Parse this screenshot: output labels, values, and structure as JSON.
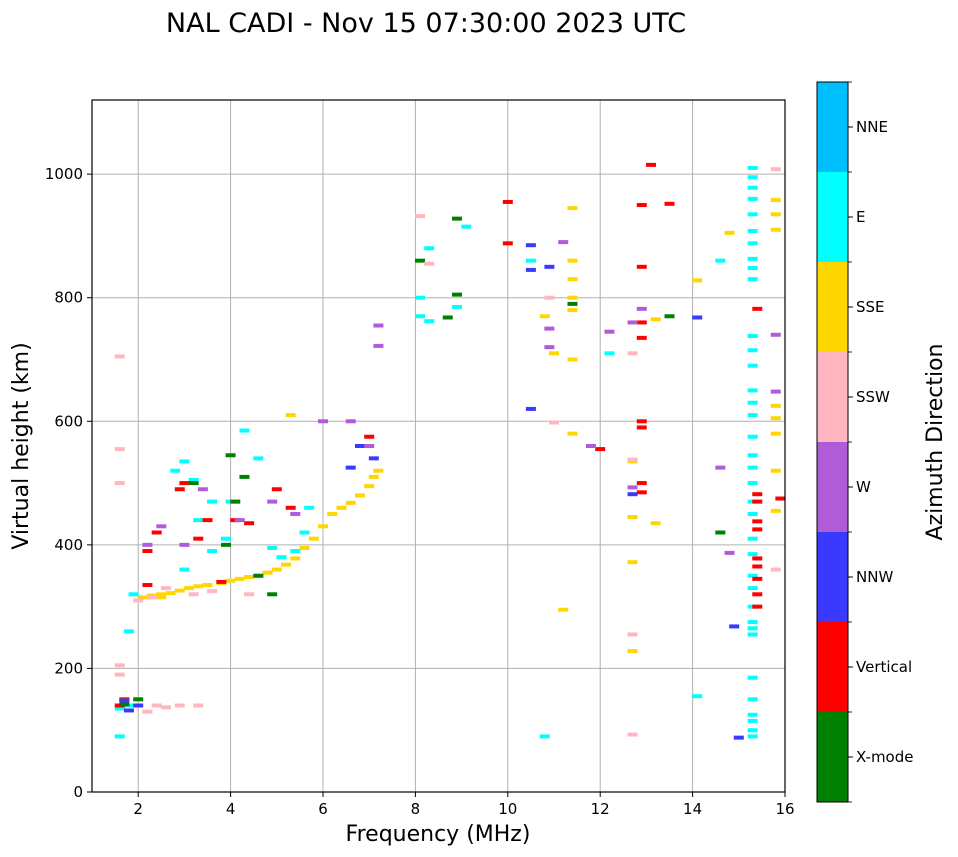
{
  "chart_data": {
    "type": "scatter",
    "title": "NAL CADI - Nov 15 07:30:00 2023 UTC",
    "xlabel": "Frequency (MHz)",
    "ylabel": "Virtual height (km)",
    "xlim": [
      1,
      16
    ],
    "ylim": [
      0,
      1120
    ],
    "xticks": [
      2,
      4,
      6,
      8,
      10,
      12,
      14,
      16
    ],
    "yticks": [
      0,
      200,
      400,
      600,
      800,
      1000
    ],
    "grid": true,
    "colorbar": {
      "title": "Azimuth Direction",
      "categories": [
        {
          "label": "X-mode",
          "color": "#008000"
        },
        {
          "label": "Vertical",
          "color": "#ff0000"
        },
        {
          "label": "NNW",
          "color": "#3a3aff"
        },
        {
          "label": "W",
          "color": "#b05bd8"
        },
        {
          "label": "SSW",
          "color": "#ffb6c1"
        },
        {
          "label": "SSE",
          "color": "#ffd700"
        },
        {
          "label": "E",
          "color": "#00ffff"
        },
        {
          "label": "NNE",
          "color": "#00bfff"
        }
      ]
    },
    "series": [
      {
        "name": "SSE",
        "points": [
          [
            2.1,
            315
          ],
          [
            2.3,
            318
          ],
          [
            2.5,
            320
          ],
          [
            2.7,
            322
          ],
          [
            2.9,
            326
          ],
          [
            3.1,
            330
          ],
          [
            3.3,
            333
          ],
          [
            3.5,
            335
          ],
          [
            3.8,
            338
          ],
          [
            4.0,
            342
          ],
          [
            4.2,
            345
          ],
          [
            4.4,
            348
          ],
          [
            4.6,
            350
          ],
          [
            4.8,
            355
          ],
          [
            5.0,
            360
          ],
          [
            5.2,
            368
          ],
          [
            5.4,
            378
          ],
          [
            5.6,
            395
          ],
          [
            5.8,
            410
          ],
          [
            6.0,
            430
          ],
          [
            6.2,
            450
          ],
          [
            6.4,
            460
          ],
          [
            6.6,
            468
          ],
          [
            6.8,
            480
          ],
          [
            7.0,
            495
          ],
          [
            7.1,
            510
          ],
          [
            7.2,
            520
          ],
          [
            11.4,
            580
          ],
          [
            11.4,
            700
          ],
          [
            11.4,
            780
          ],
          [
            11.4,
            800
          ],
          [
            11.4,
            830
          ],
          [
            11.4,
            860
          ],
          [
            11.4,
            945
          ],
          [
            11.0,
            710
          ],
          [
            10.8,
            770
          ],
          [
            12.7,
            445
          ],
          [
            12.7,
            228
          ],
          [
            12.7,
            372
          ],
          [
            12.7,
            535
          ],
          [
            13.2,
            435
          ],
          [
            13.2,
            765
          ],
          [
            14.1,
            828
          ],
          [
            14.8,
            905
          ],
          [
            15.8,
            455
          ],
          [
            15.8,
            520
          ],
          [
            15.8,
            580
          ],
          [
            15.8,
            605
          ],
          [
            15.8,
            625
          ],
          [
            15.8,
            910
          ],
          [
            15.8,
            935
          ],
          [
            15.8,
            958
          ],
          [
            11.2,
            295
          ],
          [
            5.3,
            610
          ],
          [
            2.5,
            315
          ]
        ]
      },
      {
        "name": "E",
        "points": [
          [
            2.8,
            520
          ],
          [
            3.0,
            535
          ],
          [
            3.2,
            505
          ],
          [
            3.6,
            470
          ],
          [
            3.9,
            410
          ],
          [
            4.1,
            470
          ],
          [
            4.3,
            585
          ],
          [
            4.6,
            540
          ],
          [
            4.9,
            395
          ],
          [
            5.1,
            380
          ],
          [
            5.4,
            390
          ],
          [
            5.6,
            420
          ],
          [
            5.7,
            460
          ],
          [
            3.3,
            440
          ],
          [
            3.6,
            390
          ],
          [
            1.6,
            90
          ],
          [
            1.6,
            135
          ],
          [
            1.8,
            140
          ],
          [
            1.8,
            260
          ],
          [
            1.9,
            320
          ],
          [
            8.1,
            800
          ],
          [
            8.1,
            770
          ],
          [
            8.3,
            762
          ],
          [
            8.3,
            880
          ],
          [
            8.9,
            785
          ],
          [
            9.1,
            915
          ],
          [
            10.8,
            90
          ],
          [
            10.5,
            860
          ],
          [
            12.2,
            710
          ],
          [
            14.1,
            155
          ],
          [
            14.6,
            860
          ],
          [
            15.3,
            90
          ],
          [
            15.3,
            100
          ],
          [
            15.3,
            115
          ],
          [
            15.3,
            125
          ],
          [
            15.3,
            150
          ],
          [
            15.3,
            185
          ],
          [
            15.3,
            255
          ],
          [
            15.3,
            265
          ],
          [
            15.3,
            275
          ],
          [
            15.3,
            300
          ],
          [
            15.3,
            330
          ],
          [
            15.3,
            350
          ],
          [
            15.3,
            385
          ],
          [
            15.3,
            410
          ],
          [
            15.3,
            450
          ],
          [
            15.3,
            470
          ],
          [
            15.3,
            500
          ],
          [
            15.3,
            525
          ],
          [
            15.3,
            545
          ],
          [
            15.3,
            575
          ],
          [
            15.3,
            610
          ],
          [
            15.3,
            630
          ],
          [
            15.3,
            650
          ],
          [
            15.3,
            690
          ],
          [
            15.3,
            715
          ],
          [
            15.3,
            738
          ],
          [
            15.3,
            830
          ],
          [
            15.3,
            848
          ],
          [
            15.3,
            863
          ],
          [
            15.3,
            888
          ],
          [
            15.3,
            908
          ],
          [
            15.3,
            935
          ],
          [
            15.3,
            960
          ],
          [
            15.3,
            978
          ],
          [
            15.3,
            995
          ],
          [
            15.3,
            1010
          ],
          [
            3.0,
            360
          ],
          [
            4.0,
            470
          ]
        ]
      },
      {
        "name": "Vertical",
        "points": [
          [
            1.6,
            140
          ],
          [
            1.7,
            150
          ],
          [
            2.2,
            390
          ],
          [
            2.2,
            335
          ],
          [
            2.4,
            420
          ],
          [
            2.9,
            490
          ],
          [
            3.0,
            500
          ],
          [
            3.3,
            410
          ],
          [
            3.5,
            440
          ],
          [
            3.8,
            340
          ],
          [
            4.1,
            440
          ],
          [
            4.4,
            435
          ],
          [
            5.0,
            490
          ],
          [
            5.3,
            460
          ],
          [
            7.0,
            575
          ],
          [
            10.0,
            955
          ],
          [
            10.0,
            888
          ],
          [
            12.0,
            555
          ],
          [
            12.9,
            950
          ],
          [
            12.9,
            850
          ],
          [
            12.9,
            760
          ],
          [
            12.9,
            735
          ],
          [
            12.9,
            590
          ],
          [
            12.9,
            600
          ],
          [
            12.9,
            500
          ],
          [
            12.9,
            485
          ],
          [
            13.1,
            1015
          ],
          [
            13.5,
            952
          ],
          [
            15.4,
            300
          ],
          [
            15.4,
            320
          ],
          [
            15.4,
            345
          ],
          [
            15.4,
            365
          ],
          [
            15.4,
            378
          ],
          [
            15.4,
            425
          ],
          [
            15.4,
            438
          ],
          [
            15.4,
            470
          ],
          [
            15.4,
            482
          ],
          [
            15.4,
            782
          ],
          [
            15.9,
            475
          ]
        ]
      },
      {
        "name": "X-mode",
        "points": [
          [
            1.7,
            142
          ],
          [
            2.0,
            150
          ],
          [
            4.1,
            470
          ],
          [
            4.0,
            545
          ],
          [
            4.3,
            510
          ],
          [
            4.6,
            350
          ],
          [
            4.9,
            320
          ],
          [
            3.9,
            400
          ],
          [
            8.1,
            860
          ],
          [
            8.7,
            768
          ],
          [
            8.9,
            928
          ],
          [
            8.9,
            805
          ],
          [
            13.5,
            770
          ],
          [
            14.6,
            420
          ],
          [
            11.4,
            790
          ],
          [
            3.2,
            500
          ]
        ]
      },
      {
        "name": "NNW",
        "points": [
          [
            1.7,
            148
          ],
          [
            1.8,
            132
          ],
          [
            2.0,
            140
          ],
          [
            6.6,
            525
          ],
          [
            6.8,
            560
          ],
          [
            7.1,
            540
          ],
          [
            10.5,
            620
          ],
          [
            10.5,
            885
          ],
          [
            10.5,
            845
          ],
          [
            10.9,
            850
          ],
          [
            12.7,
            482
          ],
          [
            14.1,
            768
          ],
          [
            14.9,
            268
          ],
          [
            15.0,
            88
          ]
        ]
      },
      {
        "name": "W",
        "points": [
          [
            2.2,
            400
          ],
          [
            2.5,
            430
          ],
          [
            3.0,
            400
          ],
          [
            3.4,
            490
          ],
          [
            4.2,
            440
          ],
          [
            4.9,
            470
          ],
          [
            5.4,
            450
          ],
          [
            6.0,
            600
          ],
          [
            6.6,
            600
          ],
          [
            7.0,
            560
          ],
          [
            7.2,
            755
          ],
          [
            7.2,
            722
          ],
          [
            10.9,
            750
          ],
          [
            10.9,
            720
          ],
          [
            11.2,
            890
          ],
          [
            11.8,
            560
          ],
          [
            12.2,
            745
          ],
          [
            12.7,
            760
          ],
          [
            12.7,
            493
          ],
          [
            14.6,
            525
          ],
          [
            14.8,
            387
          ],
          [
            15.8,
            740
          ],
          [
            15.8,
            648
          ],
          [
            12.9,
            782
          ]
        ]
      },
      {
        "name": "SSW",
        "points": [
          [
            1.6,
            705
          ],
          [
            1.6,
            555
          ],
          [
            1.6,
            500
          ],
          [
            1.6,
            205
          ],
          [
            1.6,
            190
          ],
          [
            2.2,
            130
          ],
          [
            2.4,
            140
          ],
          [
            2.6,
            137
          ],
          [
            2.9,
            140
          ],
          [
            3.3,
            140
          ],
          [
            2.0,
            310
          ],
          [
            2.3,
            315
          ],
          [
            2.6,
            330
          ],
          [
            3.2,
            320
          ],
          [
            3.6,
            325
          ],
          [
            4.4,
            320
          ],
          [
            8.1,
            932
          ],
          [
            8.3,
            855
          ],
          [
            10.9,
            800
          ],
          [
            11.0,
            598
          ],
          [
            12.7,
            710
          ],
          [
            12.7,
            255
          ],
          [
            12.7,
            93
          ],
          [
            12.7,
            538
          ],
          [
            15.8,
            360
          ],
          [
            15.8,
            1008
          ]
        ]
      }
    ]
  }
}
